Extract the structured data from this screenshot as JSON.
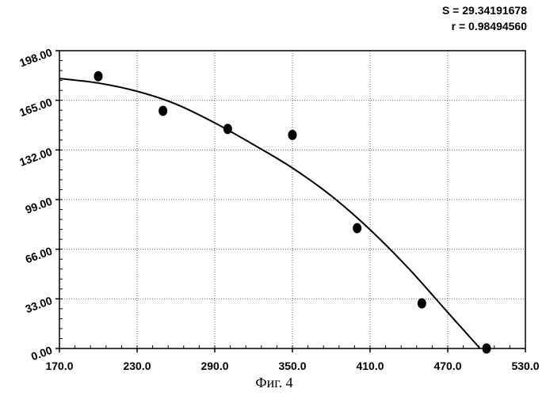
{
  "stats": {
    "s_text": "S = 29.34191678",
    "r_text": "r = 0.98494560"
  },
  "caption": "Фиг. 4",
  "chart_data": {
    "type": "scatter",
    "title": "",
    "xlabel": "",
    "ylabel": "",
    "xlim": [
      170,
      530
    ],
    "ylim": [
      0,
      198
    ],
    "grid": true,
    "x_ticks": [
      "170.0",
      "230.0",
      "290.0",
      "350.0",
      "410.0",
      "470.0",
      "530.0"
    ],
    "x_tick_values": [
      170,
      230,
      290,
      350,
      410,
      470,
      530
    ],
    "y_ticks": [
      "0.00",
      "33.00",
      "66.00",
      "99.00",
      "132.00",
      "165.00",
      "198.00"
    ],
    "y_tick_values": [
      0,
      33,
      66,
      99,
      132,
      165,
      198
    ],
    "series": [
      {
        "kind": "points",
        "x": [
          200,
          250,
          300,
          350,
          400,
          450,
          500
        ],
        "y": [
          181,
          158,
          146,
          142,
          80,
          30,
          0
        ]
      },
      {
        "kind": "fit-curve",
        "x": [
          170,
          200,
          230,
          260,
          290,
          320,
          350,
          380,
          410,
          440,
          470,
          495
        ],
        "y": [
          179.5,
          176.5,
          171,
          162.5,
          150,
          135.5,
          120,
          101.5,
          79,
          53,
          24,
          0
        ]
      }
    ],
    "colors": {
      "axis": "#000000",
      "grid": "#666666",
      "marker": "#000000",
      "curve": "#000000"
    }
  }
}
